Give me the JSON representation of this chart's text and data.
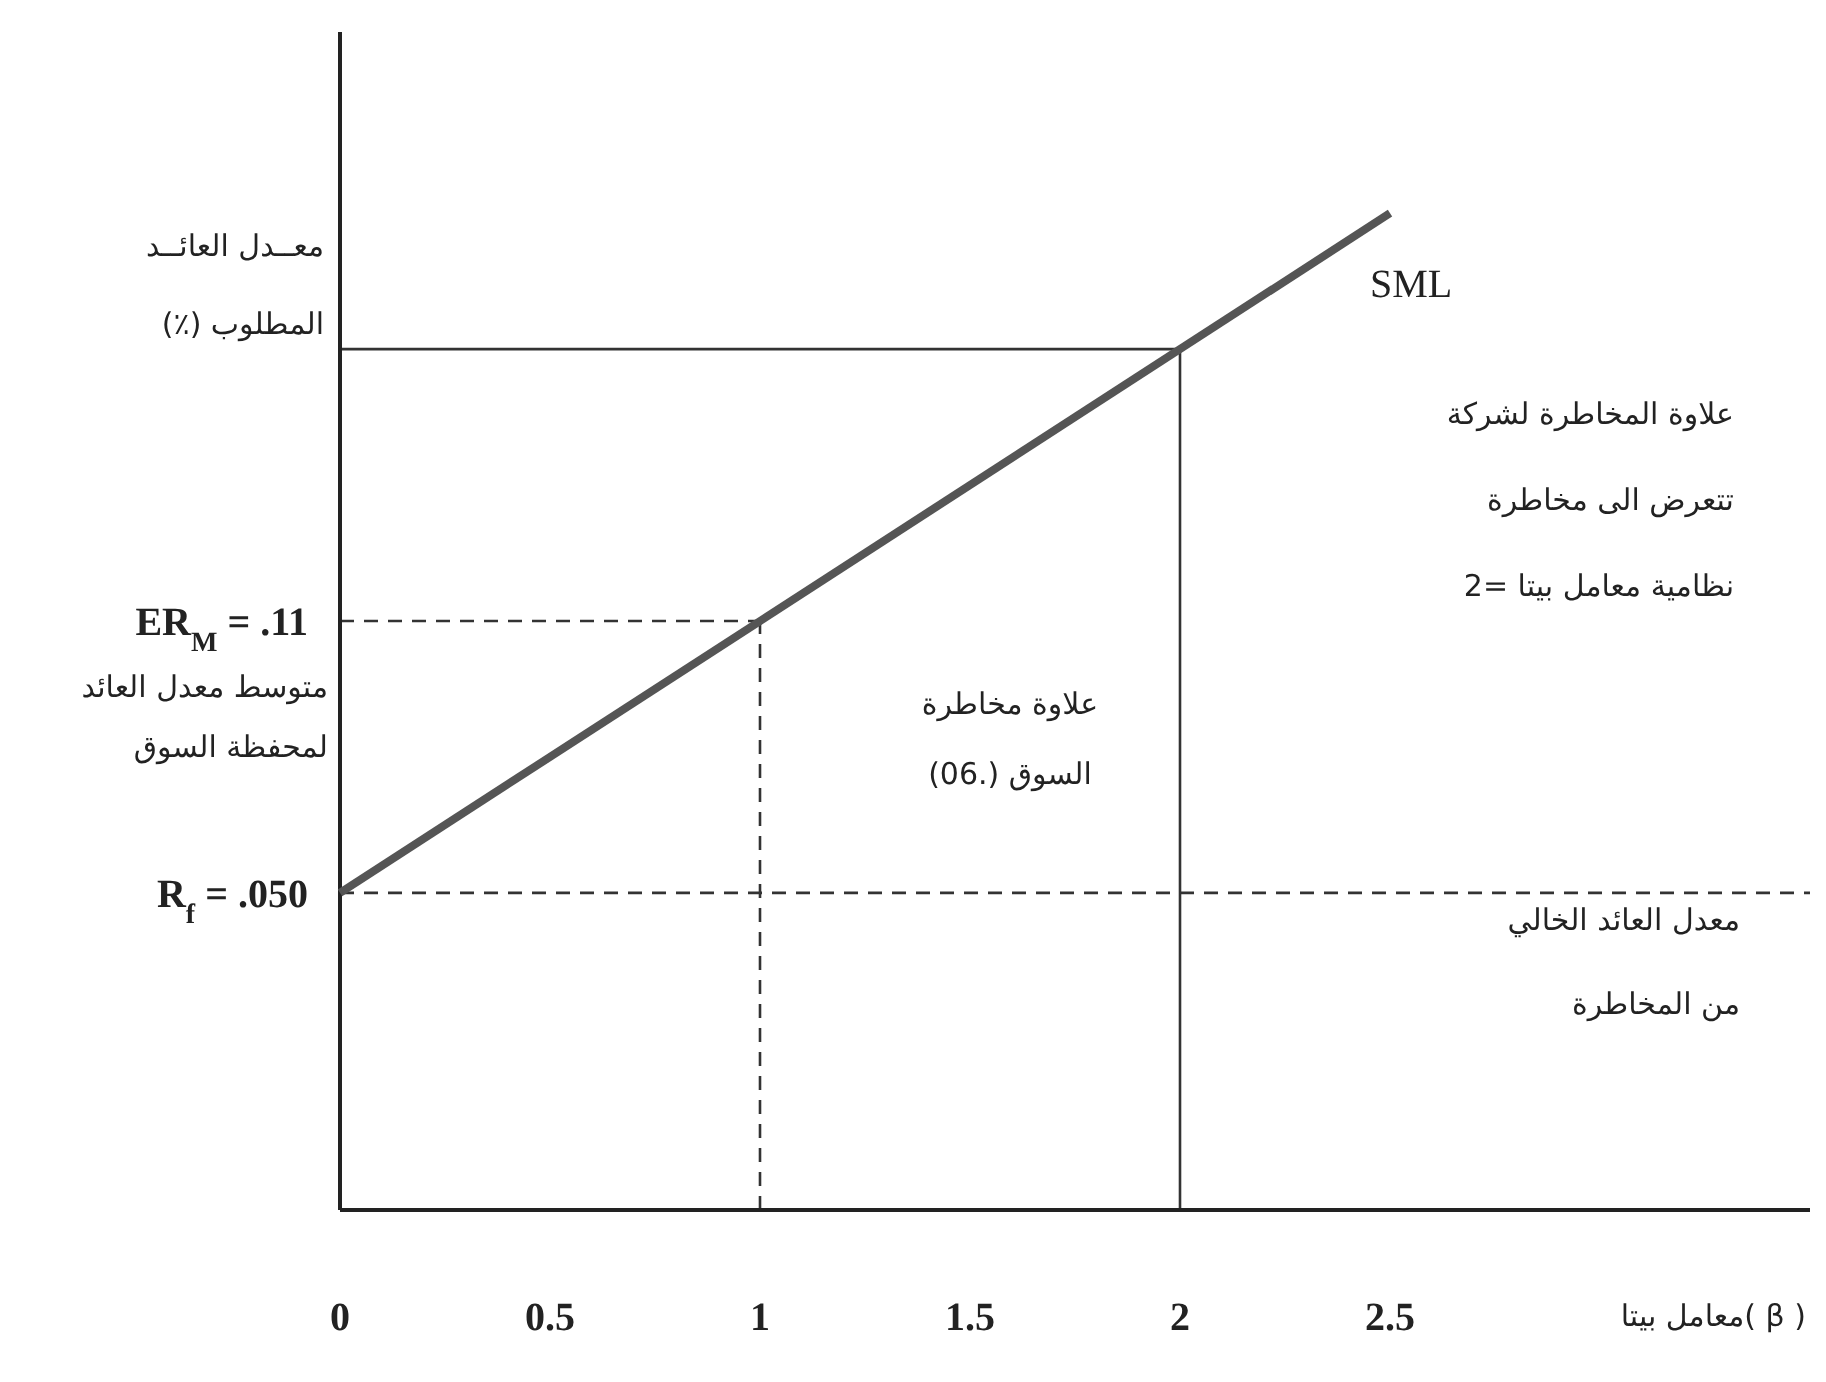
{
  "chart_data": {
    "type": "line",
    "xlabel": "معامل بيتا( β )",
    "ylabel": "معــدل العائــد المطلوب (٪)",
    "x": [
      0,
      2.5
    ],
    "series": [
      {
        "name": "SML",
        "color": "#555555",
        "values": [
          0.05,
          0.2
        ]
      }
    ],
    "xlim": [
      0,
      3.5
    ],
    "xticks": [
      0,
      0.5,
      1,
      1.5,
      2,
      2.5
    ],
    "ylim": [
      -0.02,
      0.24
    ],
    "yticks": [
      {
        "value": 0.05,
        "label": "R$_{f}$  = .050"
      },
      {
        "value": 0.11,
        "label": "ER$_{M}$ = .11"
      }
    ],
    "ref_lines": [
      {
        "axis": "y",
        "value": 0.05,
        "line_style": "dashed",
        "color": "#333333"
      },
      {
        "axis": "y",
        "value": 0.11,
        "line_style": "dashed",
        "color": "#333333"
      },
      {
        "axis": "x",
        "value": 1,
        "line_style": "dashed",
        "color": "#333333"
      },
      {
        "axis": "y",
        "value": 0.17,
        "line_style": "solid",
        "color": "#333333"
      },
      {
        "axis": "x",
        "value": 2,
        "line_style": "solid",
        "color": "#333333"
      }
    ],
    "annotations": [
      {
        "text": "متوسط معدل العائد لمحفظة السوق",
        "x": 0,
        "y": 0.11
      },
      "علاوة مخاطرة السوق (.06)",
      "علاوة المخاطرة لشركة تتعرض الى مخاطرة نظامية معامل بيتا =2",
      "معدل العائد الخالي من المخاطرة"
    ],
    "grid": false,
    "marker": "none",
    "line_style": "solid"
  }
}
